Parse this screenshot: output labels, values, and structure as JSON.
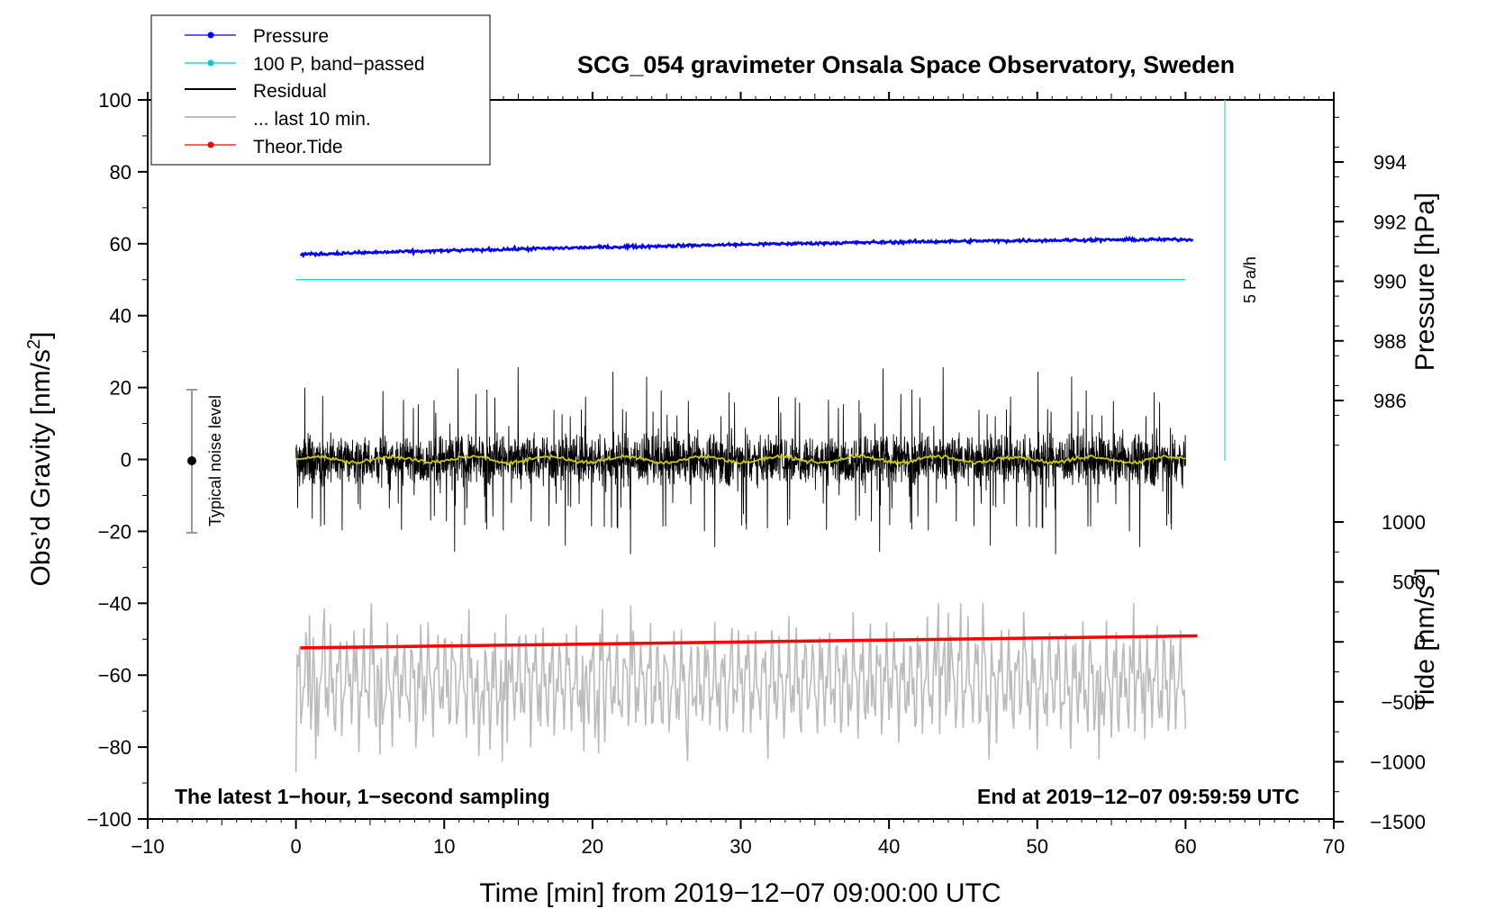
{
  "chart_data": {
    "type": "line",
    "title": "SCG_054 gravimeter Onsala Space Observatory, Sweden",
    "xlabel": "Time [min] from 2019−12−07 09:00:00 UTC",
    "ylabel_left": "Obs’d Gravity [nm/s",
    "ylabel_left_sup": "2",
    "ylabel_left_end": "]",
    "ylabel_right_top": "Pressure [hPa]",
    "ylabel_right_bottom": "Tide [nm/s",
    "ylabel_right_bottom_sup": "2",
    "ylabel_right_bottom_end": "]",
    "xlim": [
      -10,
      70
    ],
    "ylim_left": [
      -100,
      100
    ],
    "xticks": [
      -10,
      0,
      10,
      20,
      30,
      40,
      50,
      60,
      70
    ],
    "xtick_labels": [
      "−10",
      "0",
      "10",
      "20",
      "30",
      "40",
      "50",
      "60",
      "70"
    ],
    "yticks_left": [
      100,
      80,
      60,
      40,
      20,
      0,
      -20,
      -40,
      -60,
      -80,
      -100
    ],
    "ytick_labels_left": [
      "100",
      "80",
      "60",
      "40",
      "20",
      "0",
      "−20",
      "−40",
      "−60",
      "−80",
      "−100"
    ],
    "pressure_axis": {
      "ticks": [
        994,
        992,
        990,
        988,
        986
      ],
      "tick_labels": [
        "994",
        "992",
        "990",
        "988",
        "986"
      ],
      "range_hpa": [
        984,
        996
      ]
    },
    "tide_axis": {
      "ticks": [
        1000,
        500,
        0,
        -500,
        -1000,
        -1500
      ],
      "tick_labels": [
        "1000",
        "500",
        "0",
        "−500",
        "−1000",
        "−1500"
      ],
      "range": [
        -1500,
        1000
      ]
    },
    "series": [
      {
        "name": "Pressure",
        "color": "#0000ff",
        "unit": "hPa",
        "x_start": 0.3,
        "x_end": 60.5,
        "y_start": 990.9,
        "y_end": 991.4,
        "noise": 0.08
      },
      {
        "name": "100 P, band−passed",
        "color": "#00cccc",
        "x_start": 0,
        "x_end": 60,
        "y": 50
      },
      {
        "name": "Residual",
        "color": "#000000",
        "x_start": 0,
        "x_end": 60,
        "typical_min": -20,
        "typical_max": 20,
        "peak_max": 27,
        "peak_min": -27
      },
      {
        "name": "... last 10 min.",
        "color": "#bbbbbb",
        "x_start": 0,
        "x_end": 60,
        "center": -62,
        "min": -87,
        "max": -40
      },
      {
        "name": "Theor.Tide",
        "color": "#ff0000",
        "unit": "nm/s2",
        "x_start": 0.3,
        "x_end": 60.8,
        "y_start": -50,
        "y_end": 50
      },
      {
        "name": "Residual smoothed",
        "color": "#cccc00",
        "x_start": 0,
        "x_end": 60,
        "y": 0
      }
    ],
    "legend": [
      "Pressure",
      "100 P, band−passed",
      "Residual",
      "... last 10 min.",
      "Theor.Tide"
    ],
    "legend_position": "top-left",
    "annotations": {
      "noise_label": "Typical noise level",
      "noise_range": [
        -20,
        20
      ],
      "noise_x": -7,
      "rate_label": "5 Pa/h",
      "rate_bar_x": 63,
      "rate_bar_range": [
        0,
        100
      ],
      "bottom_left": "The latest 1−hour, 1−second sampling",
      "bottom_right": "End at 2019−12−07 09:59:59 UTC"
    }
  },
  "colors": {
    "pressure": "#0000ff",
    "bandpassed": "#00cccc",
    "residual": "#000000",
    "last10": "#bbbbbb",
    "tide": "#ff0000",
    "smoothed": "#cccc00"
  }
}
